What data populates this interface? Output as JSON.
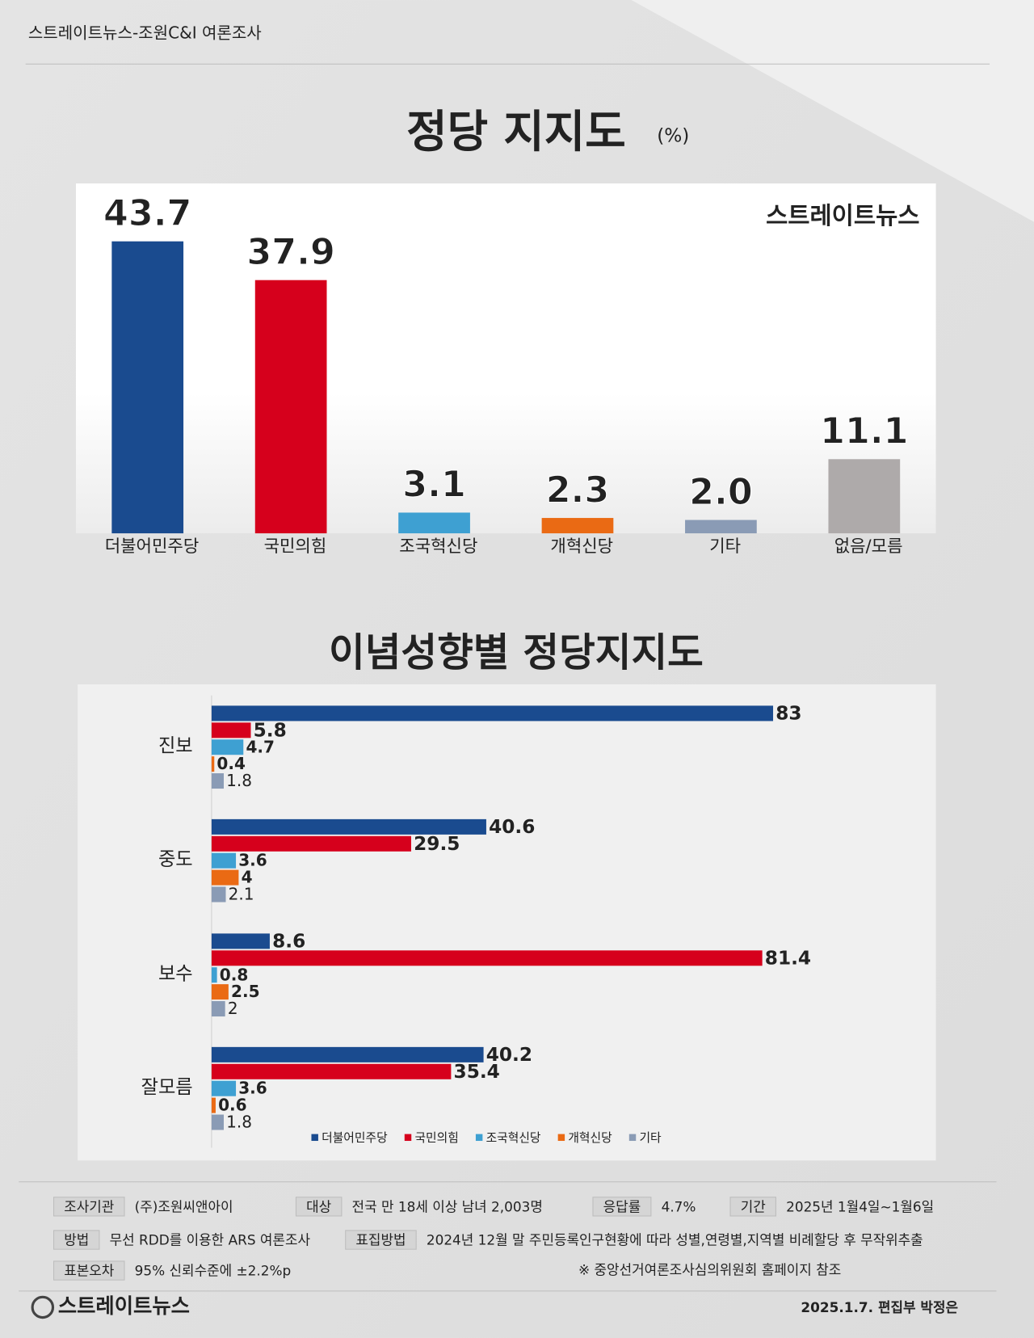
{
  "header": {
    "source": "스트레이트뉴스-조원C&I 여론조사"
  },
  "chart_data": [
    {
      "type": "bar",
      "title": "정당 지지도",
      "subtitle": "(%)",
      "categories": [
        "더불어민주당",
        "국민의힘",
        "조국혁신당",
        "개혁신당",
        "기타",
        "없음/모름"
      ],
      "values": [
        43.7,
        37.9,
        3.1,
        2.3,
        2.0,
        11.1
      ],
      "value_labels": [
        "43.7",
        "37.9",
        "3.1",
        "2.3",
        "2.0",
        "11.1"
      ],
      "colors": [
        "#1a4b8f",
        "#d6001c",
        "#3ea0d2",
        "#ea6a14",
        "#8a9bb5",
        "#aeaaaa"
      ]
    },
    {
      "type": "hbar",
      "title": "이념성향별 정당지지도",
      "categories": [
        "진보",
        "중도",
        "보수",
        "잘모름"
      ],
      "series": [
        {
          "name": "더불어민주당",
          "color": "#1a4b8f",
          "values": [
            83,
            40.6,
            8.6,
            40.2
          ]
        },
        {
          "name": "국민의힘",
          "color": "#d6001c",
          "values": [
            5.8,
            29.5,
            81.4,
            35.4
          ]
        },
        {
          "name": "조국혁신당",
          "color": "#3ea0d2",
          "values": [
            4.7,
            3.6,
            0.8,
            3.6
          ]
        },
        {
          "name": "개혁신당",
          "color": "#ea6a14",
          "values": [
            0.4,
            4,
            2.5,
            0.6
          ]
        },
        {
          "name": "기타",
          "color": "#8a9bb5",
          "values": [
            1.8,
            2.1,
            2,
            1.8
          ]
        }
      ]
    }
  ],
  "footer": {
    "items": [
      {
        "label": "조사기관",
        "value": "(주)조원씨앤아이"
      },
      {
        "label": "대상",
        "value": "전국 만 18세 이상 남녀 2,003명"
      },
      {
        "label": "응답률",
        "value": "4.7%"
      },
      {
        "label": "기간",
        "value": "2025년 1월4일~1월6일"
      },
      {
        "label": "방법",
        "value": "무선 RDD를 이용한 ARS 여론조사"
      },
      {
        "label": "표집방법",
        "value": "2024년 12월 말 주민등록인구현황에 따라 성별,연령별,지역별 비례할당 후 무작위추출"
      },
      {
        "label": "표본오차",
        "value": "95% 신뢰수준에 ±2.2%p"
      }
    ],
    "note": "※ 중앙선거여론조사심의위원회 홈페이지 참조",
    "logo": "스트레이트뉴스",
    "date": "2025.1.7. 편집부 박정은"
  }
}
